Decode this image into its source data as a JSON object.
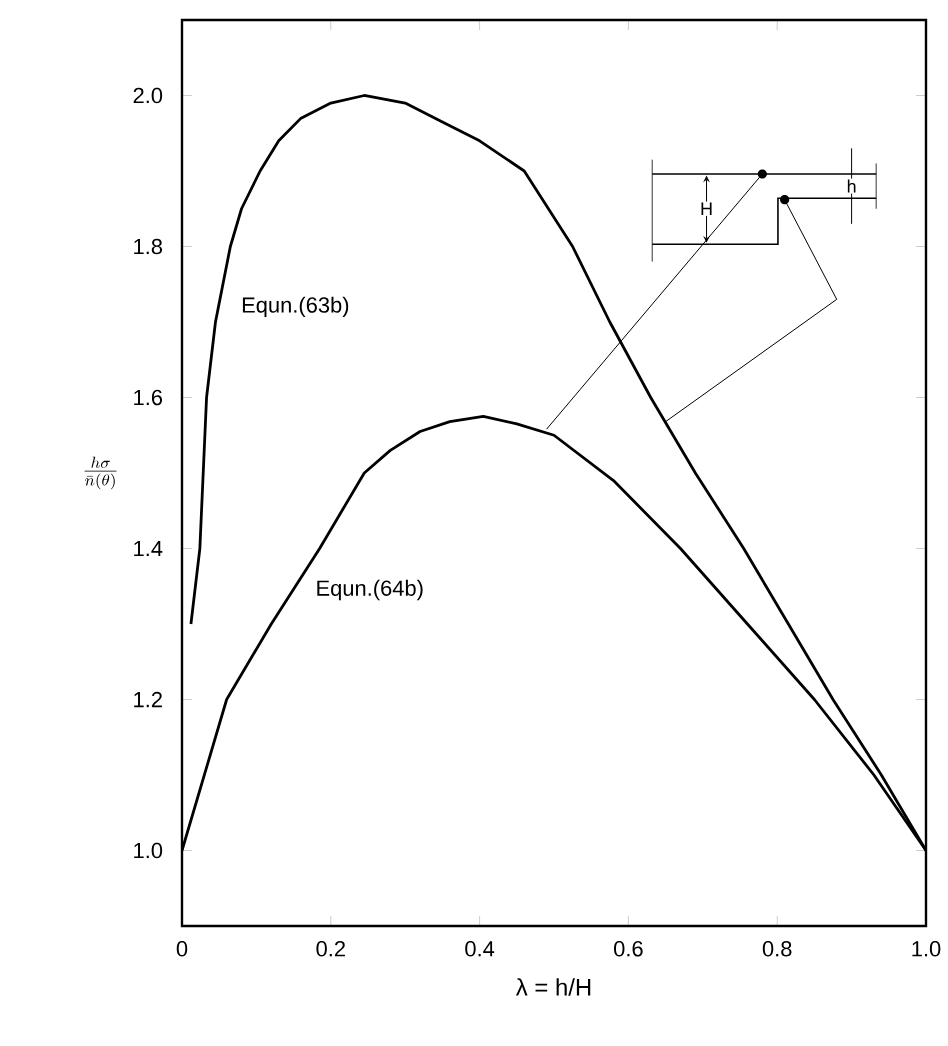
{
  "chart_data": {
    "type": "line",
    "xlabel": "λ = h/H",
    "ylabel": "\\frac{h\\sigma}{\\bar{n}(\\theta)}",
    "xlim": [
      0,
      1
    ],
    "ylim": [
      0.9,
      2.1
    ],
    "xticks": [
      0,
      0.2,
      0.4,
      0.6,
      0.8,
      {
        "value": 1,
        "label": "1.0"
      }
    ],
    "yticks": [
      {
        "value": 1,
        "label": "1.0"
      },
      1.2,
      1.4,
      1.6,
      1.8,
      {
        "value": 2,
        "label": "2.0"
      }
    ],
    "series": [
      {
        "name": "Equn.(63b)",
        "color": "#000000",
        "x": [
          0.012,
          0.024,
          0.033,
          0.045,
          0.065,
          0.08,
          0.105,
          0.13,
          0.16,
          0.2,
          0.245,
          0.3,
          0.35,
          0.4,
          0.46,
          0.525,
          0.575,
          0.63,
          0.69,
          0.755,
          0.815,
          0.875,
          0.94,
          1.0
        ],
        "values": [
          1.3,
          1.4,
          1.6,
          1.7,
          1.8,
          1.85,
          1.9,
          1.94,
          1.97,
          1.99,
          2.0,
          1.99,
          1.965,
          1.94,
          1.9,
          1.8,
          1.7,
          1.6,
          1.5,
          1.4,
          1.3,
          1.2,
          1.1,
          1.0
        ]
      },
      {
        "name": "Equn.(64b)",
        "color": "#000000",
        "x": [
          0,
          0.03,
          0.06,
          0.12,
          0.185,
          0.245,
          0.28,
          0.32,
          0.36,
          0.405,
          0.45,
          0.5,
          0.58,
          0.67,
          0.76,
          0.85,
          0.93,
          1.0
        ],
        "values": [
          1.0,
          1.1,
          1.2,
          1.3,
          1.4,
          1.5,
          1.53,
          1.555,
          1.568,
          1.575,
          1.565,
          1.55,
          1.49,
          1.4,
          1.3,
          1.2,
          1.1,
          1.0
        ]
      }
    ],
    "annotations": [
      "H",
      "h"
    ],
    "grid": false,
    "legend": false,
    "marker": "none",
    "line_style": "solid"
  }
}
